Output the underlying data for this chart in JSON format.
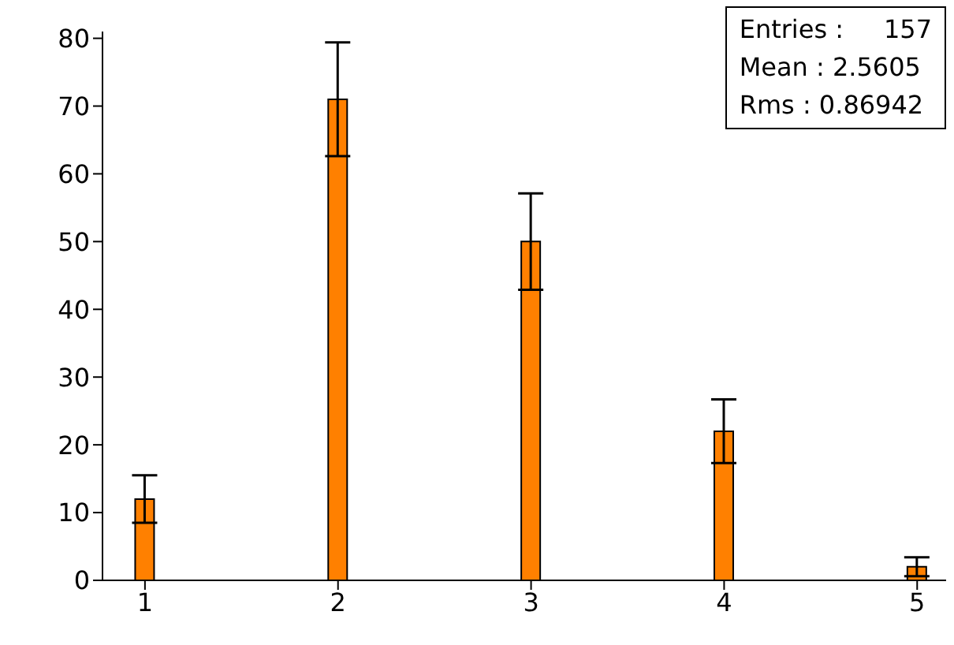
{
  "chart_data": {
    "type": "bar",
    "x": [
      1,
      2,
      3,
      4,
      5
    ],
    "values": [
      12,
      71,
      50,
      22,
      2
    ],
    "errors": [
      3.5,
      8.4,
      7.1,
      4.7,
      1.4
    ],
    "color": "#ff8000",
    "xlim": [
      0.78,
      5.15
    ],
    "xticks": [
      1,
      2,
      3,
      4,
      5
    ],
    "ylim": [
      0,
      81
    ],
    "yticks": [
      0,
      10,
      20,
      30,
      40,
      50,
      60,
      70,
      80
    ],
    "grid": false,
    "annotations": [
      "Entries :     157",
      "Mean : 2.5605",
      "Rms : 0.86942"
    ]
  }
}
